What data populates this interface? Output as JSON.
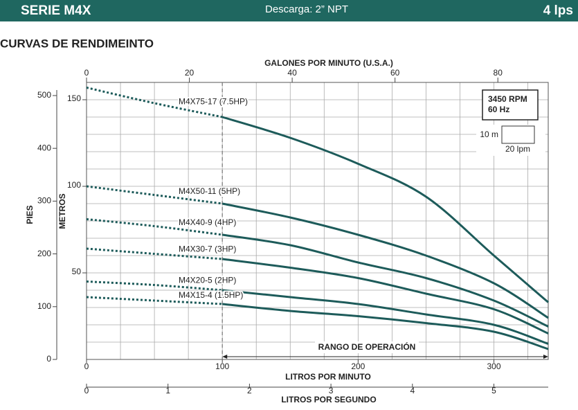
{
  "header": {
    "series": "SERIE M4X",
    "discharge": "Descarga: 2” NPT",
    "flow": "4 lps"
  },
  "chart_data": {
    "type": "line",
    "title": "CURVAS DE RENDIMEINTO",
    "x_label": "LITROS POR MINUTO",
    "y_label": "METROS",
    "y2_label": "PIES",
    "x2_label": "GALONES POR MINUTO (U.S.A.)",
    "x3_label": "LITROS POR SEGUNDO",
    "x": [
      0,
      50,
      100,
      150,
      200,
      250,
      300,
      340
    ],
    "xlim": [
      0,
      340
    ],
    "xticks": [
      0,
      100,
      200,
      300
    ],
    "ylim": [
      0,
      160
    ],
    "yticks": [
      50,
      100,
      150
    ],
    "y2lim": [
      0,
      524.9
    ],
    "y2ticks": [
      0,
      100,
      200,
      300,
      400,
      500
    ],
    "x2lim": [
      0,
      89.8
    ],
    "x2ticks": [
      0,
      20,
      40,
      60,
      80
    ],
    "x3lim": [
      0,
      5.667
    ],
    "x3ticks": [
      0,
      1,
      2,
      3,
      4,
      5
    ],
    "xgrid": [
      25,
      50,
      75,
      100,
      125,
      150,
      175,
      200,
      225,
      250,
      275,
      300,
      325
    ],
    "ygrid": [
      10,
      20,
      30,
      40,
      50,
      60,
      70,
      80,
      90,
      100,
      110,
      120,
      130,
      140,
      150
    ],
    "operating_range": [
      100,
      340
    ],
    "operating_label": "RANGO DE OPERACIÓN",
    "speed": "3450 RPM",
    "frequency": "60 Hz",
    "scale_y": "10 m",
    "scale_x": "20 lpm",
    "series": [
      {
        "name": "M4X75-17 (7.5HP)",
        "color": "#1d5b5a",
        "values": [
          157,
          148,
          140,
          128,
          113,
          94,
          60,
          33
        ]
      },
      {
        "name": "M4X50-11 (5HP)",
        "color": "#1d5b5a",
        "values": [
          100,
          95,
          90,
          82,
          72,
          60,
          44,
          24
        ]
      },
      {
        "name": "M4X40-9 (4HP)",
        "color": "#1d5b5a",
        "values": [
          81,
          77,
          72,
          66,
          56,
          47,
          34,
          19
        ]
      },
      {
        "name": "M4X30-7 (3HP)",
        "color": "#1d5b5a",
        "values": [
          64,
          61,
          58,
          53,
          47,
          38,
          29,
          15
        ]
      },
      {
        "name": "M4X20-5 (2HP)",
        "color": "#1d5b5a",
        "values": [
          45,
          43,
          40,
          36,
          32,
          26,
          20,
          9
        ]
      },
      {
        "name": "M4X15-4 (1.5HP)",
        "color": "#1d5b5a",
        "values": [
          36,
          34,
          32,
          28,
          25,
          21,
          16,
          6
        ]
      }
    ]
  }
}
